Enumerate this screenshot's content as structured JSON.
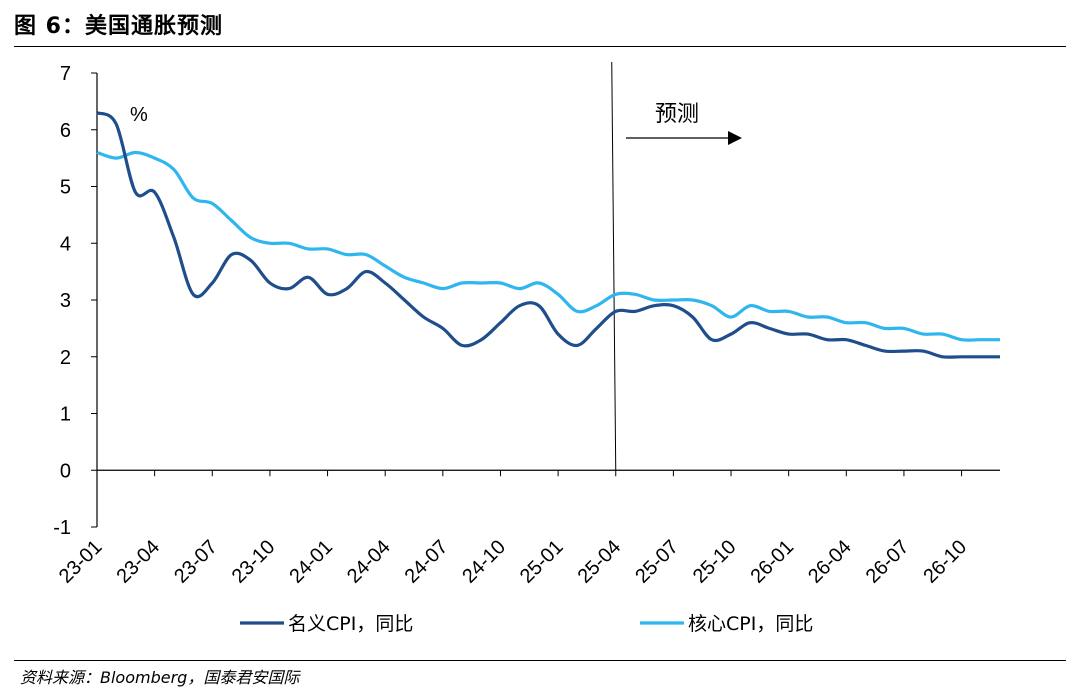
{
  "figure": {
    "title": "图 6：美国通胀预测",
    "source": "资料来源：Bloomberg，国泰君安国际"
  },
  "colors": {
    "nominal": "#1f4e8c",
    "core": "#2fb6ee",
    "axis": "#000000"
  },
  "chart_data": {
    "type": "line",
    "title": "",
    "xlabel": "",
    "ylabel": "%",
    "ylim": [
      -1,
      7
    ],
    "yticks": [
      -1,
      0,
      1,
      2,
      3,
      4,
      5,
      6,
      7
    ],
    "xticks": [
      "23-01",
      "23-04",
      "23-07",
      "23-10",
      "24-01",
      "24-04",
      "24-07",
      "24-10",
      "25-01",
      "25-04",
      "25-07",
      "25-10",
      "26-01",
      "26-04",
      "26-07",
      "26-10"
    ],
    "x_start": "23-01",
    "x_end": "26-12",
    "forecast_start": "25-04",
    "forecast_label": "预测",
    "legend_position": "bottom",
    "series": [
      {
        "name": "名义CPI，同比",
        "color": "#1f4e8c",
        "values": [
          6.3,
          6.1,
          4.9,
          4.9,
          4.1,
          3.1,
          3.3,
          3.8,
          3.7,
          3.3,
          3.2,
          3.4,
          3.1,
          3.2,
          3.5,
          3.3,
          3.0,
          2.7,
          2.5,
          2.2,
          2.3,
          2.6,
          2.9,
          2.9,
          2.4,
          2.2,
          2.5,
          2.8,
          2.8,
          2.9,
          2.9,
          2.7,
          2.3,
          2.4,
          2.6,
          2.5,
          2.4,
          2.4,
          2.3,
          2.3,
          2.2,
          2.1,
          2.1,
          2.1,
          2.0,
          2.0,
          2.0,
          2.0
        ]
      },
      {
        "name": "核心CPI，同比",
        "color": "#2fb6ee",
        "values": [
          5.6,
          5.5,
          5.6,
          5.5,
          5.3,
          4.8,
          4.7,
          4.4,
          4.1,
          4.0,
          4.0,
          3.9,
          3.9,
          3.8,
          3.8,
          3.6,
          3.4,
          3.3,
          3.2,
          3.3,
          3.3,
          3.3,
          3.2,
          3.3,
          3.1,
          2.8,
          2.9,
          3.1,
          3.1,
          3.0,
          3.0,
          3.0,
          2.9,
          2.7,
          2.9,
          2.8,
          2.8,
          2.7,
          2.7,
          2.6,
          2.6,
          2.5,
          2.5,
          2.4,
          2.4,
          2.3,
          2.3,
          2.3
        ]
      }
    ]
  }
}
